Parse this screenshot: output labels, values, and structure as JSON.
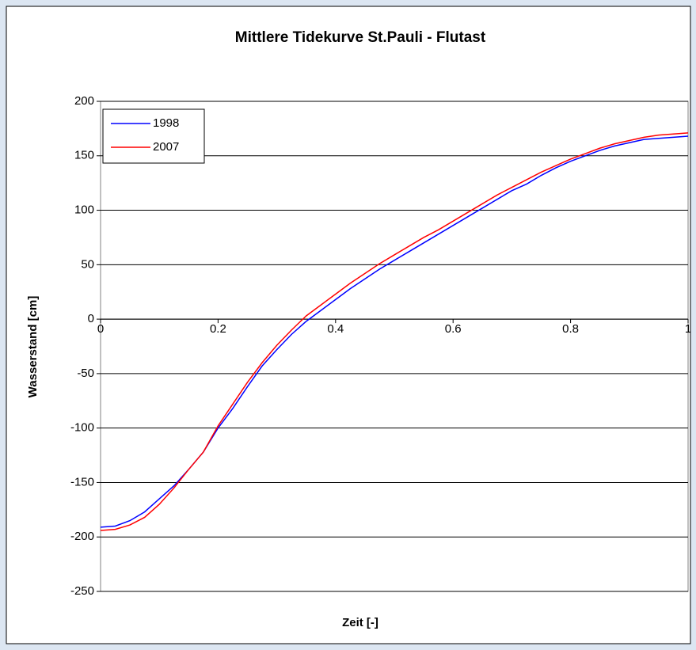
{
  "chart_data": {
    "type": "line",
    "title": "Mittlere Tidekurve St.Pauli - Flutast",
    "x_label": "Zeit [-]",
    "y_label": "Wasserstand [cm]",
    "x": [
      0,
      0.025,
      0.05,
      0.075,
      0.1,
      0.125,
      0.15,
      0.175,
      0.2,
      0.225,
      0.25,
      0.275,
      0.3,
      0.325,
      0.35,
      0.375,
      0.4,
      0.425,
      0.45,
      0.475,
      0.5,
      0.525,
      0.55,
      0.575,
      0.6,
      0.625,
      0.65,
      0.675,
      0.7,
      0.725,
      0.75,
      0.775,
      0.8,
      0.825,
      0.85,
      0.875,
      0.9,
      0.925,
      0.95,
      0.975,
      1
    ],
    "series": [
      {
        "name": "1998",
        "color": "#0000ff",
        "values": [
          -191,
          -190,
          -185,
          -177,
          -165,
          -153,
          -138,
          -122,
          -100,
          -82,
          -62,
          -43,
          -28,
          -14,
          -2,
          8,
          18,
          28,
          37,
          46,
          54,
          62,
          70,
          78,
          86,
          94,
          102,
          110,
          118,
          124,
          132,
          139,
          145,
          150,
          155,
          159,
          162,
          165,
          166,
          167,
          168
        ]
      },
      {
        "name": "2007",
        "color": "#ff0000",
        "values": [
          -194,
          -193,
          -189,
          -182,
          -170,
          -155,
          -138,
          -122,
          -98,
          -78,
          -58,
          -40,
          -24,
          -10,
          3,
          13,
          23,
          33,
          42,
          51,
          59,
          67,
          75,
          82,
          90,
          98,
          106,
          114,
          121,
          128,
          135,
          141,
          147,
          152,
          157,
          161,
          164,
          167,
          169,
          170,
          171
        ]
      }
    ],
    "xlim": [
      0,
      1
    ],
    "xticks": [
      0,
      0.2,
      0.4,
      0.6,
      0.8,
      1
    ],
    "ylim": [
      -250,
      200
    ],
    "yticks": [
      -250,
      -200,
      -150,
      -100,
      -50,
      0,
      50,
      100,
      150,
      200
    ],
    "grid": true,
    "legend": "top-left"
  }
}
